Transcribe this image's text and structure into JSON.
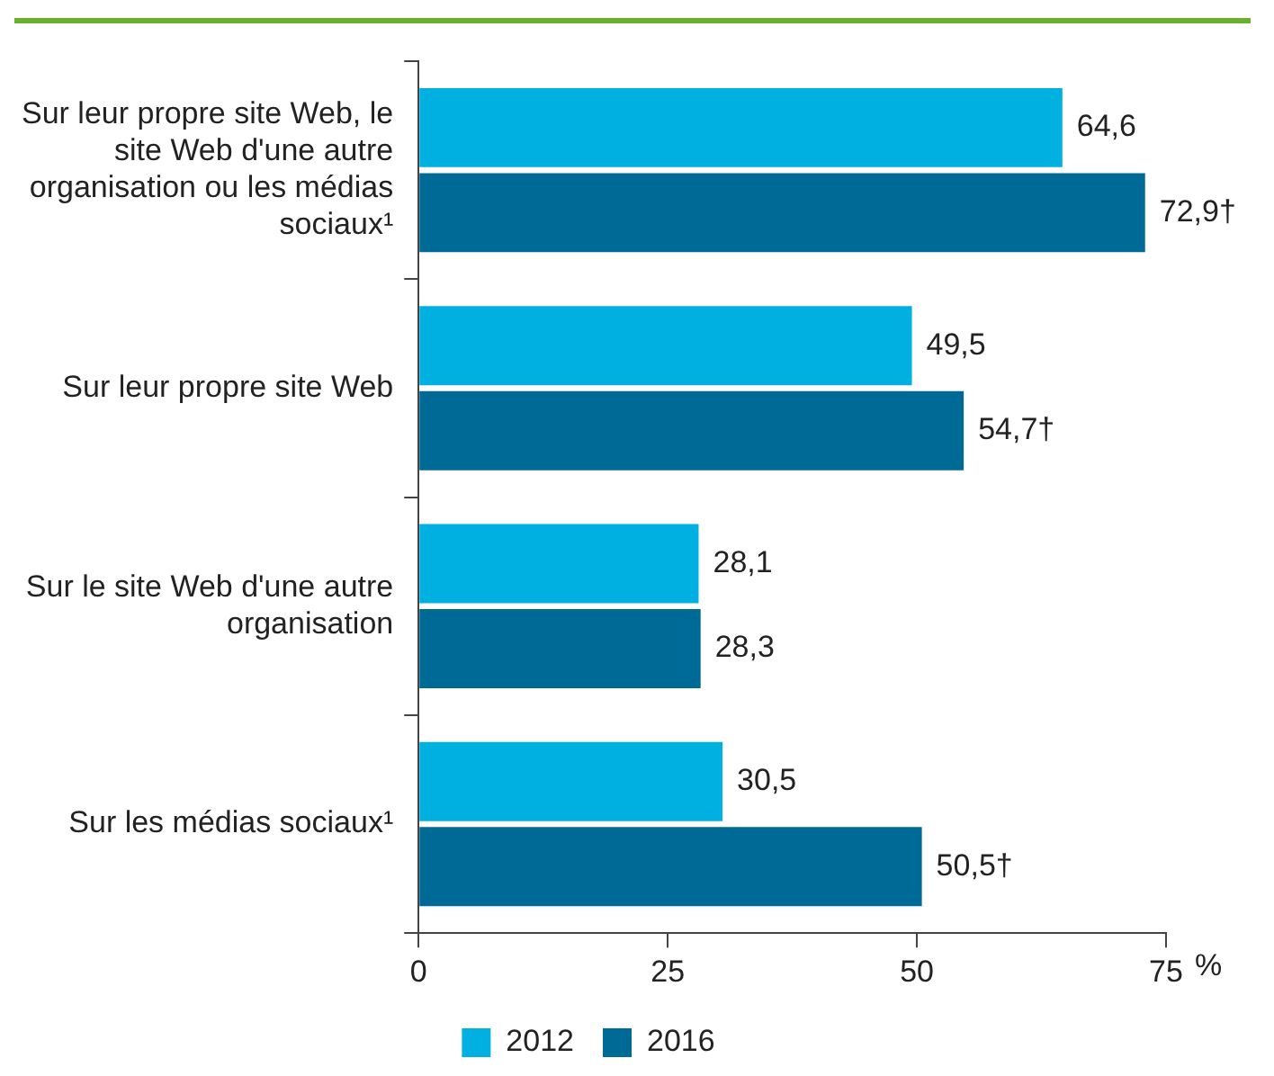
{
  "chart_data": {
    "type": "bar",
    "orientation": "horizontal",
    "categories": [
      "Sur leur propre site Web, le site Web d'une autre organisation ou les médias sociaux¹",
      "Sur leur propre site Web",
      "Sur le site Web d'une autre organisation",
      "Sur les médias sociaux¹"
    ],
    "series": [
      {
        "name": "2012",
        "color": "#00b0e0",
        "values": [
          64.6,
          49.5,
          28.1,
          30.5
        ],
        "value_labels": [
          "64,6",
          "49,5",
          "28,1",
          "30,5"
        ]
      },
      {
        "name": "2016",
        "color": "#006a96",
        "values": [
          72.9,
          54.7,
          28.3,
          50.5
        ],
        "value_labels": [
          "72,9†",
          "54,7†",
          "28,3",
          "50,5†"
        ]
      }
    ],
    "xlabel": "%",
    "xlim": [
      0,
      75
    ],
    "xticks": [
      0,
      25,
      50,
      75
    ],
    "grid": false,
    "legend": "bottom"
  }
}
